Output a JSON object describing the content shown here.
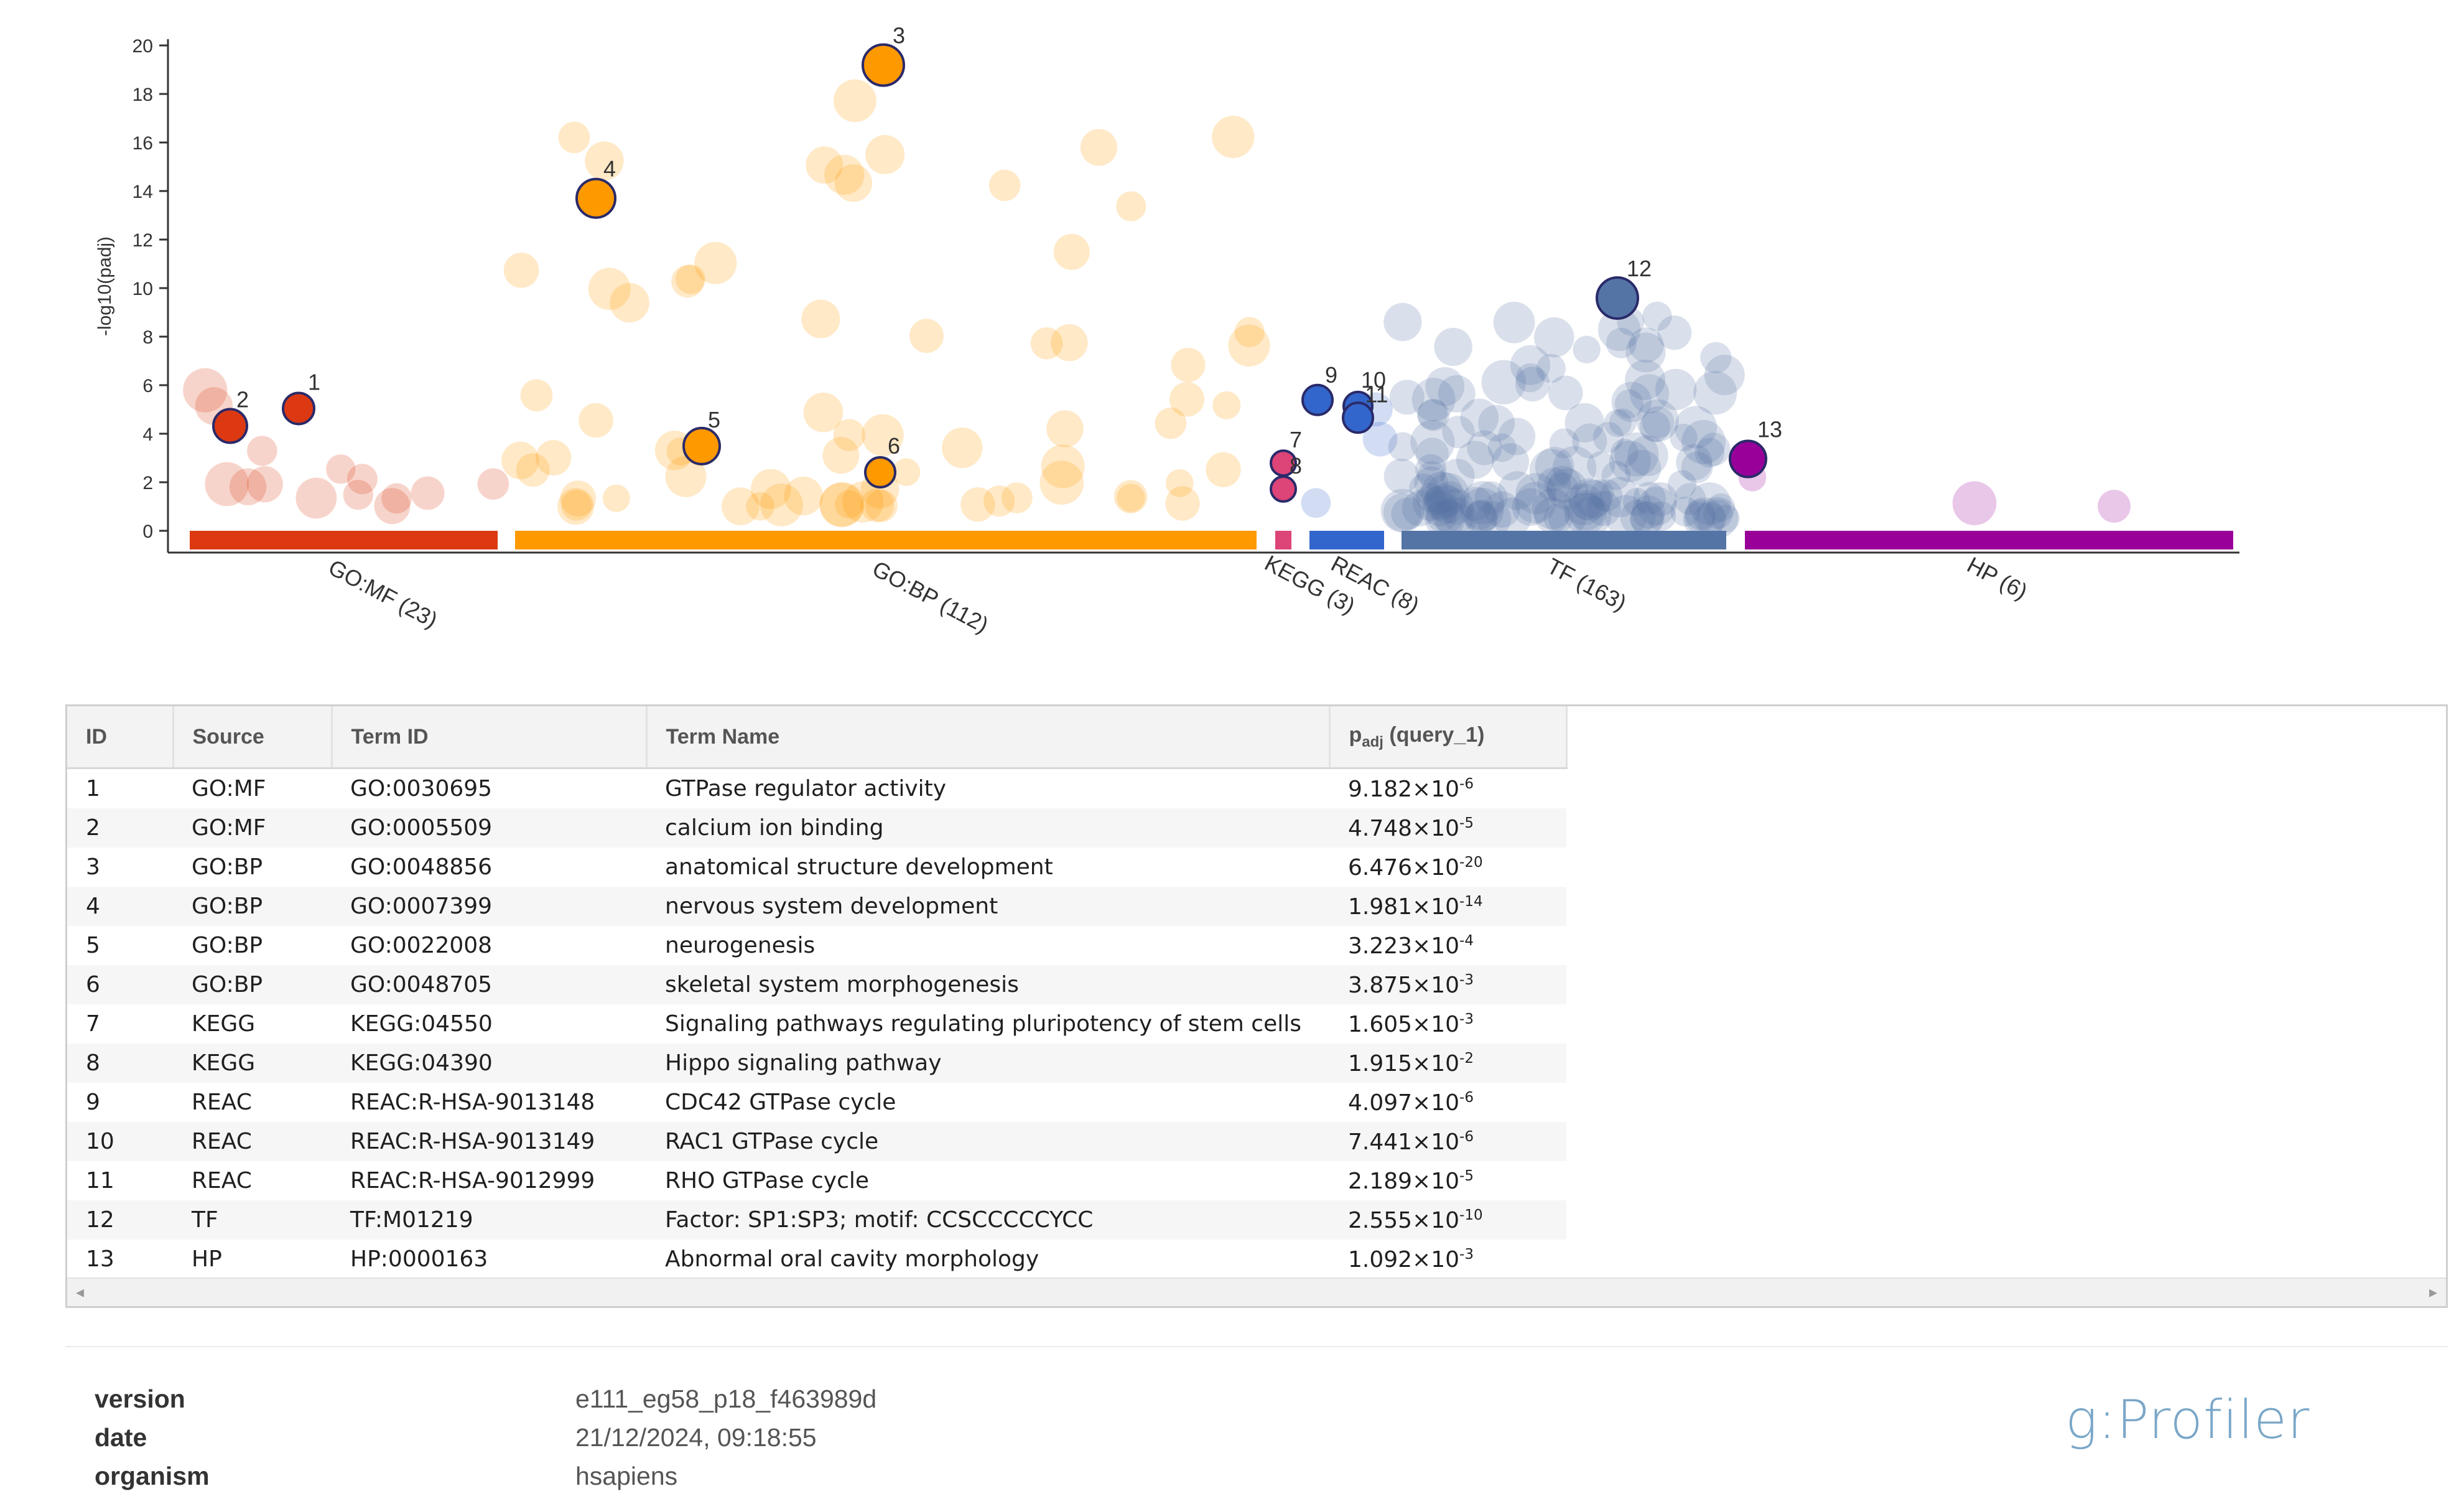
{
  "chart_data": {
    "type": "scatter",
    "title": "",
    "ylabel": "-log10(padj)",
    "ylim": [
      0,
      20
    ],
    "yticks": [
      "0",
      "2",
      "4",
      "6",
      "8",
      "10",
      "12",
      "14",
      "16",
      "18",
      "20"
    ],
    "sources": [
      {
        "name": "GO:MF (23)",
        "color": "#dc3912"
      },
      {
        "name": "GO:BP (112)",
        "color": "#ff9900"
      },
      {
        "name": "KEGG (3)",
        "color": "#dd4477"
      },
      {
        "name": "REAC (8)",
        "color": "#3366cc"
      },
      {
        "name": "TF (163)",
        "color": "#5574a6"
      },
      {
        "name": "HP (6)",
        "color": "#990099"
      }
    ],
    "highlighted": [
      {
        "id": "1",
        "source": "GO:MF",
        "y": 5.04
      },
      {
        "id": "2",
        "source": "GO:MF",
        "y": 4.32
      },
      {
        "id": "3",
        "source": "GO:BP",
        "y": 19.19
      },
      {
        "id": "4",
        "source": "GO:BP",
        "y": 13.7
      },
      {
        "id": "5",
        "source": "GO:BP",
        "y": 3.49
      },
      {
        "id": "6",
        "source": "GO:BP",
        "y": 2.41
      },
      {
        "id": "7",
        "source": "KEGG",
        "y": 2.79
      },
      {
        "id": "8",
        "source": "KEGG",
        "y": 1.72
      },
      {
        "id": "9",
        "source": "REAC",
        "y": 5.39
      },
      {
        "id": "10",
        "source": "REAC",
        "y": 5.13
      },
      {
        "id": "11",
        "source": "REAC",
        "y": 4.66
      },
      {
        "id": "12",
        "source": "TF",
        "y": 9.59
      },
      {
        "id": "13",
        "source": "HP",
        "y": 2.96
      }
    ]
  },
  "table": {
    "headers": {
      "id": "ID",
      "source": "Source",
      "term_id": "Term ID",
      "term_name": "Term Name",
      "padj_main": "p",
      "padj_sub": "adj",
      "padj_rest": " (query_1)"
    },
    "rows": [
      {
        "id": "1",
        "source": "GO:MF",
        "term_id": "GO:0030695",
        "term_name": "GTPase regulator activity",
        "mant": "9.182×10",
        "exp": "-6"
      },
      {
        "id": "2",
        "source": "GO:MF",
        "term_id": "GO:0005509",
        "term_name": "calcium ion binding",
        "mant": "4.748×10",
        "exp": "-5"
      },
      {
        "id": "3",
        "source": "GO:BP",
        "term_id": "GO:0048856",
        "term_name": "anatomical structure development",
        "mant": "6.476×10",
        "exp": "-20"
      },
      {
        "id": "4",
        "source": "GO:BP",
        "term_id": "GO:0007399",
        "term_name": "nervous system development",
        "mant": "1.981×10",
        "exp": "-14"
      },
      {
        "id": "5",
        "source": "GO:BP",
        "term_id": "GO:0022008",
        "term_name": "neurogenesis",
        "mant": "3.223×10",
        "exp": "-4"
      },
      {
        "id": "6",
        "source": "GO:BP",
        "term_id": "GO:0048705",
        "term_name": "skeletal system morphogenesis",
        "mant": "3.875×10",
        "exp": "-3"
      },
      {
        "id": "7",
        "source": "KEGG",
        "term_id": "KEGG:04550",
        "term_name": "Signaling pathways regulating pluripotency of stem cells",
        "mant": "1.605×10",
        "exp": "-3"
      },
      {
        "id": "8",
        "source": "KEGG",
        "term_id": "KEGG:04390",
        "term_name": "Hippo signaling pathway",
        "mant": "1.915×10",
        "exp": "-2"
      },
      {
        "id": "9",
        "source": "REAC",
        "term_id": "REAC:R-HSA-9013148",
        "term_name": "CDC42 GTPase cycle",
        "mant": "4.097×10",
        "exp": "-6"
      },
      {
        "id": "10",
        "source": "REAC",
        "term_id": "REAC:R-HSA-9013149",
        "term_name": "RAC1 GTPase cycle",
        "mant": "7.441×10",
        "exp": "-6"
      },
      {
        "id": "11",
        "source": "REAC",
        "term_id": "REAC:R-HSA-9012999",
        "term_name": "RHO GTPase cycle",
        "mant": "2.189×10",
        "exp": "-5"
      },
      {
        "id": "12",
        "source": "TF",
        "term_id": "TF:M01219",
        "term_name": "Factor: SP1:SP3; motif: CCSCCCCCYCC",
        "mant": "2.555×10",
        "exp": "-10"
      },
      {
        "id": "13",
        "source": "HP",
        "term_id": "HP:0000163",
        "term_name": "Abnormal oral cavity morphology",
        "mant": "1.092×10",
        "exp": "-3"
      }
    ]
  },
  "meta": {
    "version_label": "version",
    "version": "e111_eg58_p18_f463989d",
    "date_label": "date",
    "date": "21/12/2024, 09:18:55",
    "organism_label": "organism",
    "organism": "hsapiens"
  },
  "logo": "g:Profiler"
}
